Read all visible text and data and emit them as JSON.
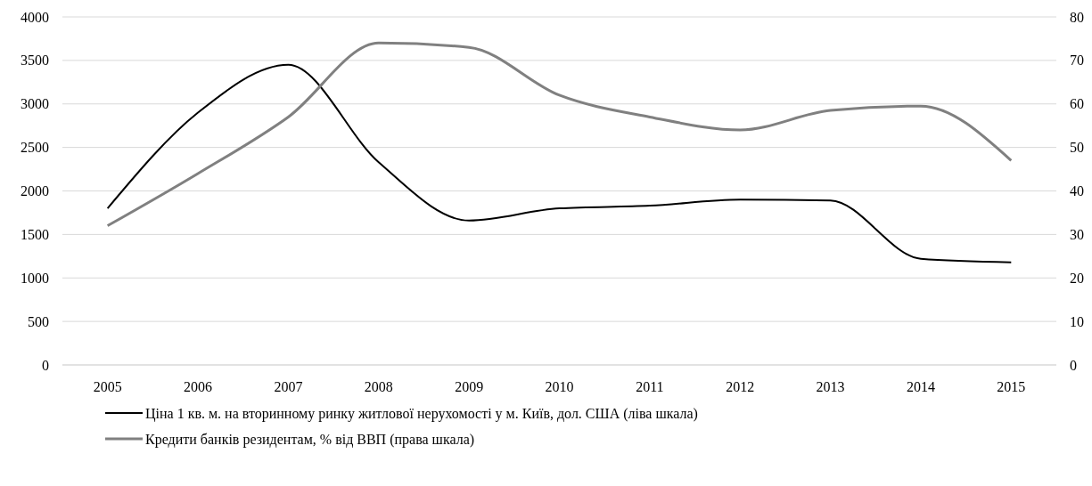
{
  "chart_data": {
    "type": "line",
    "categories": [
      "2005",
      "2006",
      "2007",
      "2008",
      "2009",
      "2010",
      "2011",
      "2012",
      "2013",
      "2014",
      "2015"
    ],
    "series": [
      {
        "name": "Ціна 1 кв. м. на вторинному ринку житлової нерухомості у м. Київ, дол. США  (ліва шкала)",
        "color": "#000000",
        "values": [
          1800,
          2900,
          3450,
          2330,
          1660,
          1800,
          1830,
          1900,
          1890,
          1220,
          1180
        ]
      },
      {
        "name": "Кредити банків резидентам, % від ВВП (права шкала)",
        "color": "#808080",
        "axis": "y2",
        "values": [
          32,
          44,
          57,
          74,
          73,
          62,
          57,
          54,
          58.5,
          59.5,
          47
        ]
      }
    ],
    "ylim": [
      0,
      4000
    ],
    "yticks": [
      0,
      500,
      1000,
      1500,
      2000,
      2500,
      3000,
      3500,
      4000
    ],
    "y2lim": [
      0,
      80
    ],
    "y2ticks": [
      0,
      10,
      20,
      30,
      40,
      50,
      60,
      70,
      80
    ],
    "grid": "y",
    "legend": "bottom",
    "line_style": "solid",
    "marker": "none"
  }
}
